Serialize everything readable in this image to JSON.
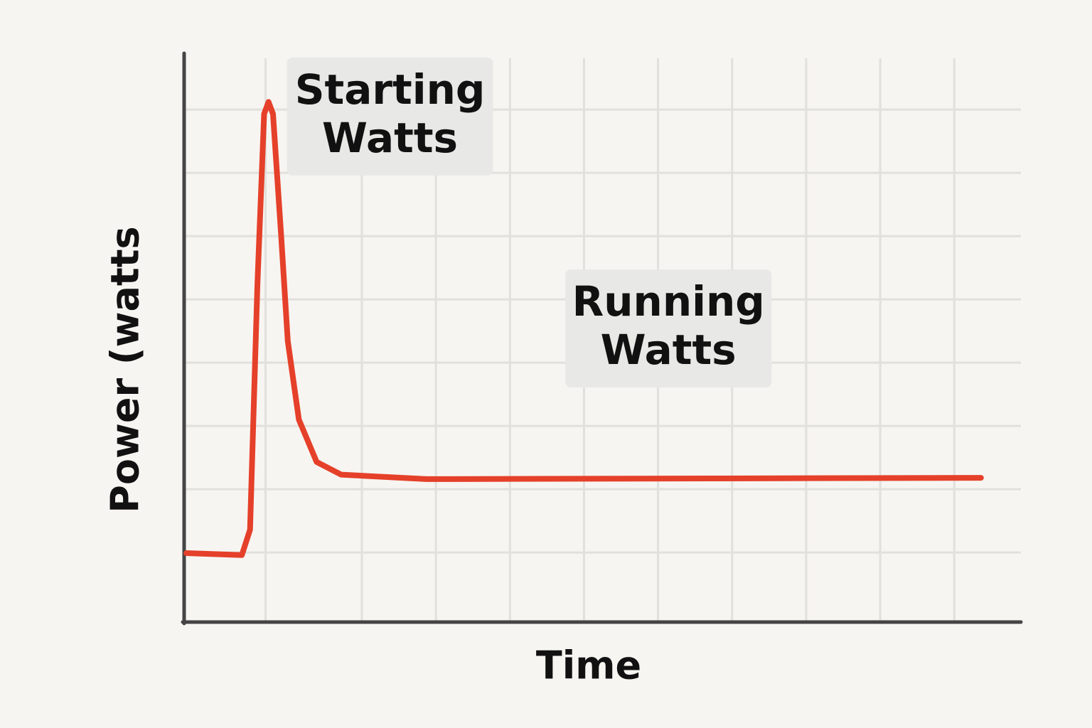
{
  "chart_data": {
    "type": "line",
    "x_label": "Time",
    "y_label": "Power (watts",
    "x": [
      0.03,
      0.78,
      0.89,
      0.99,
      1.08,
      1.14,
      1.2,
      1.31,
      1.4,
      1.55,
      1.79,
      2.12,
      3.27,
      7.11,
      10.76
    ],
    "values": [
      1.09,
      1.06,
      1.46,
      5.34,
      8.03,
      8.22,
      8.03,
      6.12,
      4.44,
      3.2,
      2.53,
      2.33,
      2.26,
      2.27,
      2.28
    ],
    "color": "#e5402a",
    "xlim": [
      0,
      11.3
    ],
    "ylim": [
      0,
      9
    ],
    "xticks": [
      1.1,
      2.4,
      3.4,
      4.4,
      5.4,
      6.4,
      7.4,
      8.4,
      9.4,
      10.4
    ],
    "yticks": [
      1.1,
      2.1,
      3.1,
      4.1,
      5.1,
      6.1,
      7.1,
      8.1
    ],
    "grid": true,
    "annotations": [
      {
        "lines": [
          "Starting",
          "Watts"
        ],
        "x": 2.78,
        "y": 7.99
      },
      {
        "lines": [
          "Running",
          "Watts"
        ],
        "x": 6.54,
        "y": 4.64
      }
    ]
  }
}
